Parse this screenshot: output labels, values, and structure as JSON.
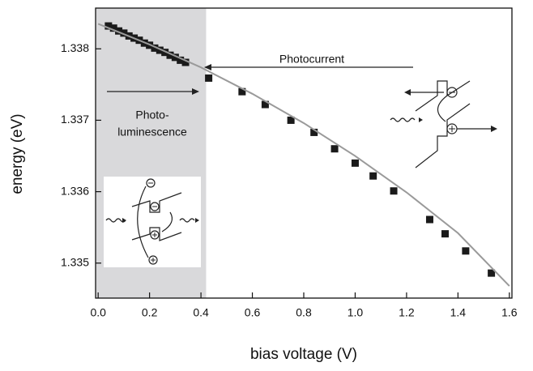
{
  "chart_data": {
    "type": "scatter",
    "xlabel": "bias voltage (V)",
    "ylabel": "energy (eV)",
    "xlim": [
      -0.01,
      1.61
    ],
    "ylim": [
      1.33451,
      1.33857
    ],
    "xticks": [
      {
        "value": 0,
        "label": "0.0"
      },
      0.2,
      0.4,
      0.6,
      0.8,
      {
        "value": 1,
        "label": "1.0"
      },
      1.2,
      1.4,
      1.6
    ],
    "yticks": [
      1.335,
      1.336,
      1.337,
      1.338
    ],
    "shaded_xrange": [
      -0.01,
      0.42
    ],
    "shade_color": "#d9d9db",
    "marker_color": "#1a1a1a",
    "fit_color": "#9a9a9a",
    "annotations": [
      "Photocurrent",
      "Photo-",
      "luminescence"
    ],
    "series": [
      {
        "x": [
          0.04,
          0.06,
          0.08,
          0.1,
          0.12,
          0.14,
          0.16,
          0.18,
          0.2,
          0.22,
          0.24,
          0.26,
          0.28,
          0.3,
          0.32,
          0.34
        ],
        "values": [
          1.33832,
          1.33829,
          1.33825,
          1.33822,
          1.33818,
          1.33815,
          1.33812,
          1.33808,
          1.33805,
          1.33801,
          1.33798,
          1.33795,
          1.33791,
          1.33788,
          1.33784,
          1.33781
        ]
      },
      {
        "x": [
          0.43,
          0.56,
          0.65,
          0.75,
          0.84,
          0.92,
          1.0,
          1.07,
          1.15,
          1.29,
          1.35,
          1.43,
          1.53
        ],
        "values": [
          1.33759,
          1.3374,
          1.33722,
          1.337,
          1.33683,
          1.3366,
          1.3364,
          1.33622,
          1.33601,
          1.33561,
          1.33541,
          1.33517,
          1.33486
        ]
      }
    ],
    "fit": {
      "x": [
        0,
        0.2,
        0.4,
        0.6,
        0.8,
        1.0,
        1.2,
        1.4,
        1.6
      ],
      "values": [
        1.33835,
        1.33806,
        1.33774,
        1.33737,
        1.33696,
        1.3365,
        1.33599,
        1.33542,
        1.33468
      ]
    }
  }
}
